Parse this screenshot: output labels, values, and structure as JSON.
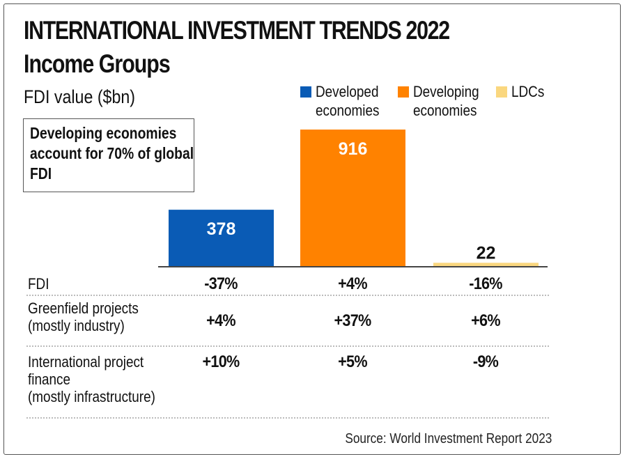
{
  "header": {
    "title": "INTERNATIONAL INVESTMENT TRENDS 2022",
    "subtitle": "Income Groups",
    "unit_label": "FDI value ($bn)"
  },
  "callout": "Developing economies account for 70% of global FDI",
  "legend": [
    {
      "label": "Developed\neconomies",
      "color": "#0a5bb5"
    },
    {
      "label": "Developing\neconomies",
      "color": "#ff8200"
    },
    {
      "label": "LDCs",
      "color": "#fad77f"
    }
  ],
  "chart_data": {
    "type": "bar",
    "title": "INTERNATIONAL INVESTMENT TRENDS 2022 — Income Groups",
    "ylabel": "FDI value ($bn)",
    "xlabel": "",
    "categories": [
      "Developed economies",
      "Developing economies",
      "LDCs"
    ],
    "values": [
      378,
      916,
      22
    ],
    "data_labels": [
      "378",
      "916",
      "22"
    ],
    "colors": [
      "#0a5bb5",
      "#ff8200",
      "#fad77f"
    ],
    "ylim": [
      0,
      916
    ],
    "grid": false,
    "legend_position": "top-right"
  },
  "table": {
    "rows": [
      {
        "label": "FDI",
        "values": [
          "-37%",
          "+4%",
          "-16%"
        ]
      },
      {
        "label": "Greenfield projects\n(mostly industry)",
        "values": [
          "+4%",
          "+37%",
          "+6%"
        ]
      },
      {
        "label": "International project\nfinance\n(mostly infrastructure)",
        "values": [
          "+10%",
          "+5%",
          "-9%"
        ]
      }
    ]
  },
  "source": "Source: World Investment Report 2023"
}
